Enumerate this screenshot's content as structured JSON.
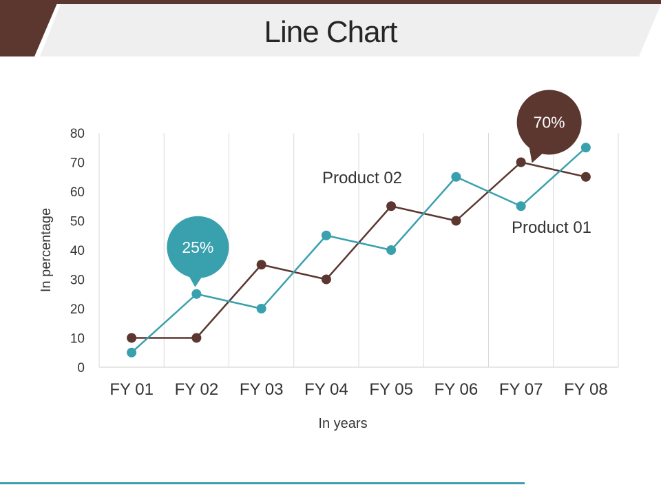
{
  "page": {
    "title": "Line Chart"
  },
  "colors": {
    "brand_brown": "#5b3730",
    "accent_teal": "#39a0ad",
    "header_gray": "#efefef",
    "grid": "#d9d9d9"
  },
  "chart_data": {
    "type": "line",
    "title": "",
    "xlabel": "In years",
    "ylabel": "In percentage",
    "ylim": [
      0,
      80
    ],
    "yticks": [
      0,
      10,
      20,
      30,
      40,
      50,
      60,
      70,
      80
    ],
    "categories": [
      "FY 01",
      "FY 02",
      "FY 03",
      "FY 04",
      "FY 05",
      "FY 06",
      "FY 07",
      "FY 08"
    ],
    "grid": "vertical",
    "series": [
      {
        "name": "Product 01",
        "color": "#39a0ad",
        "values": [
          5,
          25,
          20,
          45,
          40,
          65,
          55,
          75
        ]
      },
      {
        "name": "Product 02",
        "color": "#5b3730",
        "values": [
          10,
          10,
          35,
          30,
          55,
          50,
          70,
          65
        ]
      }
    ],
    "callouts": [
      {
        "label": "25%",
        "series": 0,
        "category": "FY 02",
        "color": "#39a0ad"
      },
      {
        "label": "70%",
        "series": 1,
        "category": "FY 07",
        "color": "#5b3730"
      }
    ]
  }
}
